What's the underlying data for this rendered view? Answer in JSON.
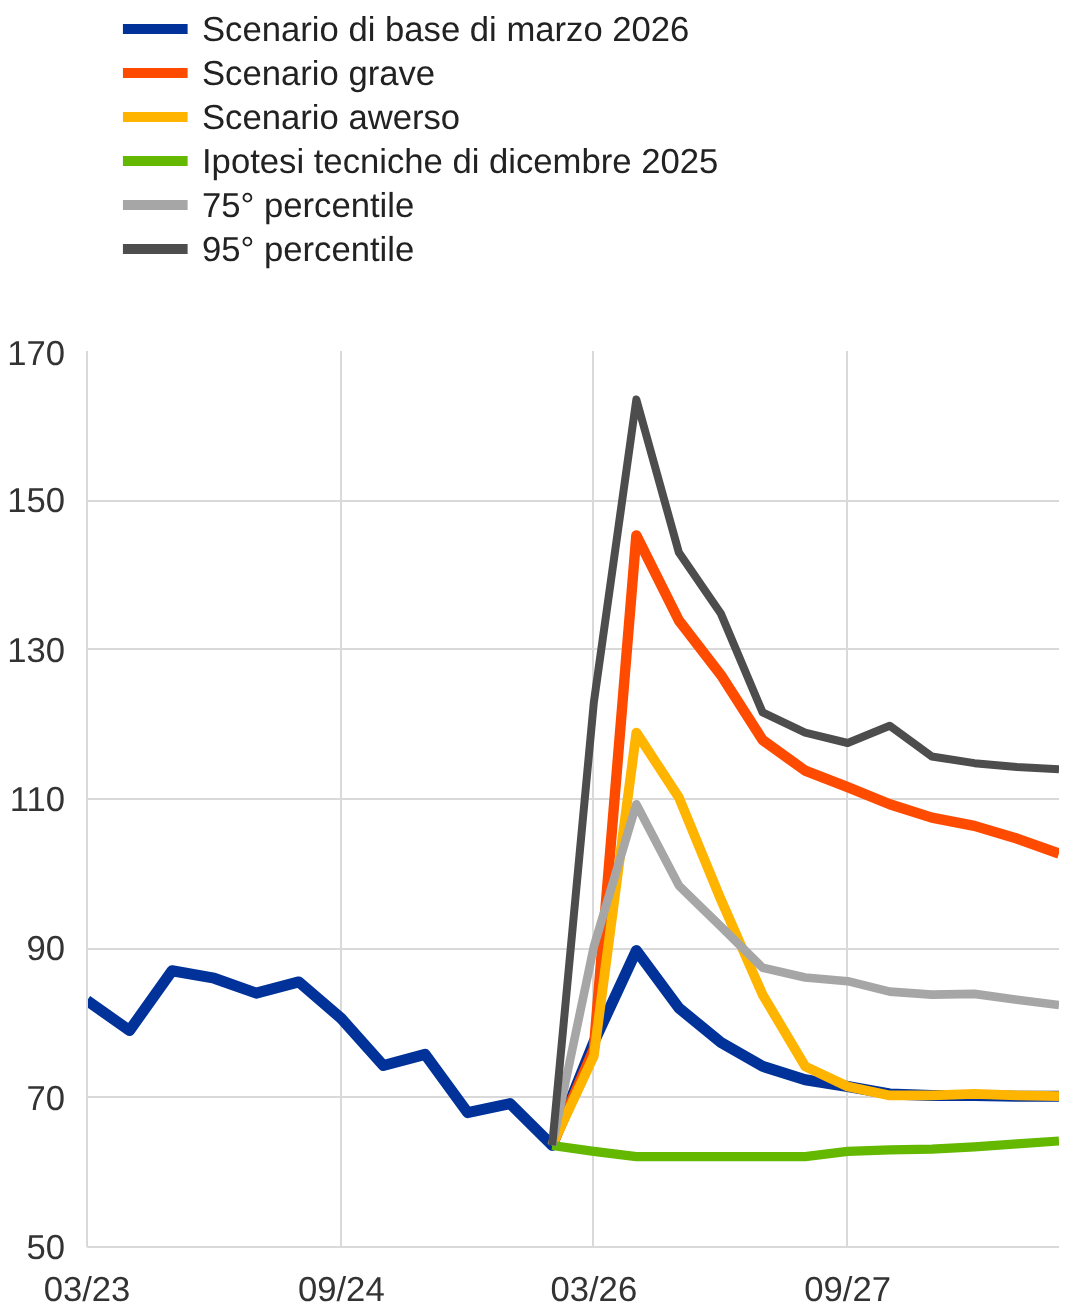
{
  "chart_data": {
    "type": "line",
    "xlim": [
      "2023-03",
      "2028-12"
    ],
    "ylim": [
      50,
      170
    ],
    "yticks": [
      50,
      70,
      90,
      110,
      130,
      150,
      170
    ],
    "xticks": [
      {
        "value": "2023-03",
        "label": "03/23"
      },
      {
        "value": "2024-09",
        "label": "09/24"
      },
      {
        "value": "2026-03",
        "label": "03/26"
      },
      {
        "value": "2027-09",
        "label": "09/27"
      }
    ],
    "grid": true,
    "legend": "top left",
    "series": [
      {
        "name": "Scenario di base di marzo 2026",
        "color": "#003299",
        "x": [
          "2023-03",
          "2023-06",
          "2023-09",
          "2023-12",
          "2024-03",
          "2024-06",
          "2024-09",
          "2024-12",
          "2025-03",
          "2025-06",
          "2025-09",
          "2025-12",
          "2026-03",
          "2026-06",
          "2026-09",
          "2026-12",
          "2027-03",
          "2027-06",
          "2027-09",
          "2027-12",
          "2028-03",
          "2028-06",
          "2028-09",
          "2028-12"
        ],
        "values": [
          83,
          79,
          87,
          86,
          84,
          85.5,
          80.6,
          74.3,
          75.8,
          68,
          69.2,
          63.6,
          77.4,
          89.7,
          82,
          77.4,
          74.2,
          72.4,
          71.5,
          70.5,
          70.3,
          70.3,
          70.2,
          70.2
        ]
      },
      {
        "name": "Scenario grave",
        "color": "#ff4b00",
        "x": [
          "2025-12",
          "2026-03",
          "2026-06",
          "2026-09",
          "2026-12",
          "2027-03",
          "2027-06",
          "2027-09",
          "2027-12",
          "2028-03",
          "2028-06",
          "2028-09",
          "2028-12"
        ],
        "values": [
          63.6,
          76.5,
          145.3,
          133.9,
          126.6,
          117.9,
          113.8,
          111.6,
          109.3,
          107.5,
          106.4,
          104.7,
          102.7
        ]
      },
      {
        "name": "Scenario awerso",
        "color": "#ffb400",
        "x": [
          "2025-12",
          "2026-03",
          "2026-06",
          "2026-09",
          "2026-12",
          "2027-03",
          "2027-06",
          "2027-09",
          "2027-12",
          "2028-03",
          "2028-06",
          "2028-09",
          "2028-12"
        ],
        "values": [
          63.6,
          75.6,
          118.9,
          110.2,
          96.5,
          83.8,
          74.2,
          71.5,
          70.3,
          70.3,
          70.5,
          70.3,
          70.2
        ]
      },
      {
        "name": "Ipotesi tecniche di dicembre 2025",
        "color": "#65b800",
        "x": [
          "2025-12",
          "2026-03",
          "2026-06",
          "2026-09",
          "2026-12",
          "2027-03",
          "2027-06",
          "2027-09",
          "2027-12",
          "2028-03",
          "2028-06",
          "2028-09",
          "2028-12"
        ],
        "values": [
          63.6,
          62.8,
          62.1,
          62.1,
          62.1,
          62.1,
          62.1,
          62.8,
          63,
          63.1,
          63.4,
          63.8,
          64.2
        ]
      },
      {
        "name": "75° percentile",
        "color": "#a6a6a6",
        "x": [
          "2025-12",
          "2026-03",
          "2026-06",
          "2026-09",
          "2026-12",
          "2027-03",
          "2027-06",
          "2027-09",
          "2027-12",
          "2028-03",
          "2028-06",
          "2028-09",
          "2028-12"
        ],
        "values": [
          63.6,
          90.2,
          109.3,
          98.4,
          92.9,
          87.4,
          86.1,
          85.6,
          84.2,
          83.8,
          83.9,
          83.1,
          82.4
        ]
      },
      {
        "name": "95° percentile",
        "color": "#4d4d4d",
        "x": [
          "2025-12",
          "2026-03",
          "2026-06",
          "2026-09",
          "2026-12",
          "2027-03",
          "2027-06",
          "2027-09",
          "2027-12",
          "2028-03",
          "2028-06",
          "2028-09",
          "2028-12"
        ],
        "values": [
          63.6,
          122.9,
          163.5,
          143,
          134.8,
          121.6,
          118.9,
          117.5,
          119.8,
          115.7,
          114.8,
          114.3,
          114
        ]
      }
    ]
  }
}
